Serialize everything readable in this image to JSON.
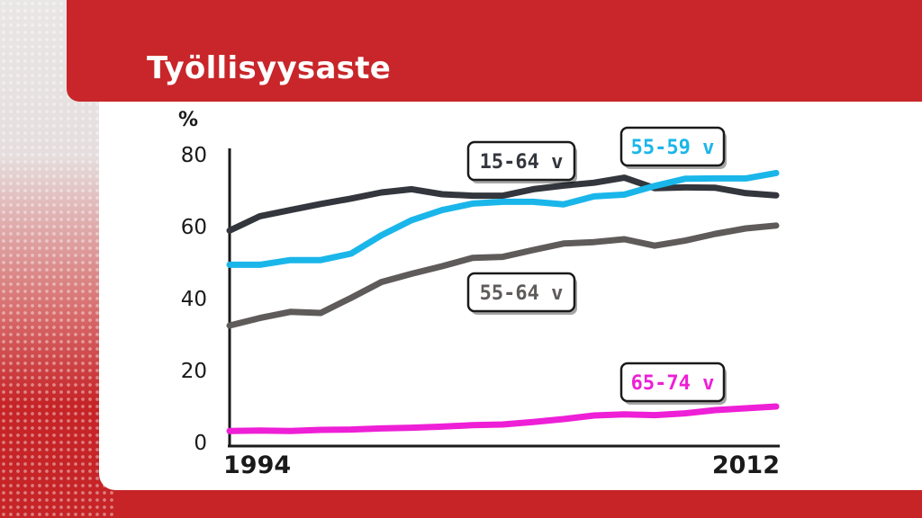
{
  "title": "Työllisyysaste",
  "colors": {
    "brand_red": "#c8262a",
    "series_15_64": "#33363c",
    "series_55_59": "#1ab6ea",
    "series_55_64": "#5f5b5a",
    "series_65_74": "#ee1fd6"
  },
  "chart_data": {
    "type": "line",
    "title": "Työllisyysaste",
    "ylabel": "%",
    "xlabel": "",
    "ylim": [
      0,
      80
    ],
    "yticks": [
      "0",
      "20",
      "40",
      "60",
      "80"
    ],
    "xticks": [
      "1994",
      "2012"
    ],
    "x": [
      1994,
      1995,
      1996,
      1997,
      1998,
      1999,
      2000,
      2001,
      2002,
      2003,
      2004,
      2005,
      2006,
      2007,
      2008,
      2009,
      2010,
      2011,
      2012
    ],
    "grid": false,
    "series": [
      {
        "name": "15-64 v",
        "color": "#33363c",
        "values": [
          58.9,
          62.9,
          64.6,
          66.3,
          67.8,
          69.5,
          70.4,
          69.0,
          68.6,
          68.6,
          70.4,
          71.4,
          72.2,
          73.6,
          70.7,
          70.9,
          70.8,
          69.3,
          68.7
        ]
      },
      {
        "name": "55-59 v",
        "color": "#1ab6ea",
        "values": [
          49.4,
          49.4,
          50.7,
          50.7,
          52.5,
          57.6,
          61.8,
          64.6,
          66.4,
          66.9,
          66.9,
          66.2,
          68.4,
          68.9,
          71.3,
          73.3,
          73.4,
          73.4,
          74.9
        ]
      },
      {
        "name": "55-64 v",
        "color": "#5f5b5a",
        "values": [
          32.5,
          34.6,
          36.3,
          36.0,
          40.2,
          44.6,
          46.9,
          49.0,
          51.3,
          51.6,
          53.5,
          55.3,
          55.7,
          56.5,
          54.7,
          56.1,
          58.0,
          59.5,
          60.3
        ]
      },
      {
        "name": "65-74 v",
        "color": "#ee1fd6",
        "values": [
          3.2,
          3.3,
          3.2,
          3.5,
          3.6,
          3.9,
          4.1,
          4.4,
          4.8,
          5.0,
          5.7,
          6.5,
          7.5,
          7.8,
          7.6,
          8.1,
          9.0,
          9.5,
          10.0
        ]
      }
    ],
    "labels": [
      {
        "text": "15-64 v",
        "color": "#33363c"
      },
      {
        "text": "55-59 v",
        "color": "#1ab6ea"
      },
      {
        "text": "55-64 v",
        "color": "#5f5b5a"
      },
      {
        "text": "65-74 v",
        "color": "#ee1fd6"
      }
    ]
  }
}
